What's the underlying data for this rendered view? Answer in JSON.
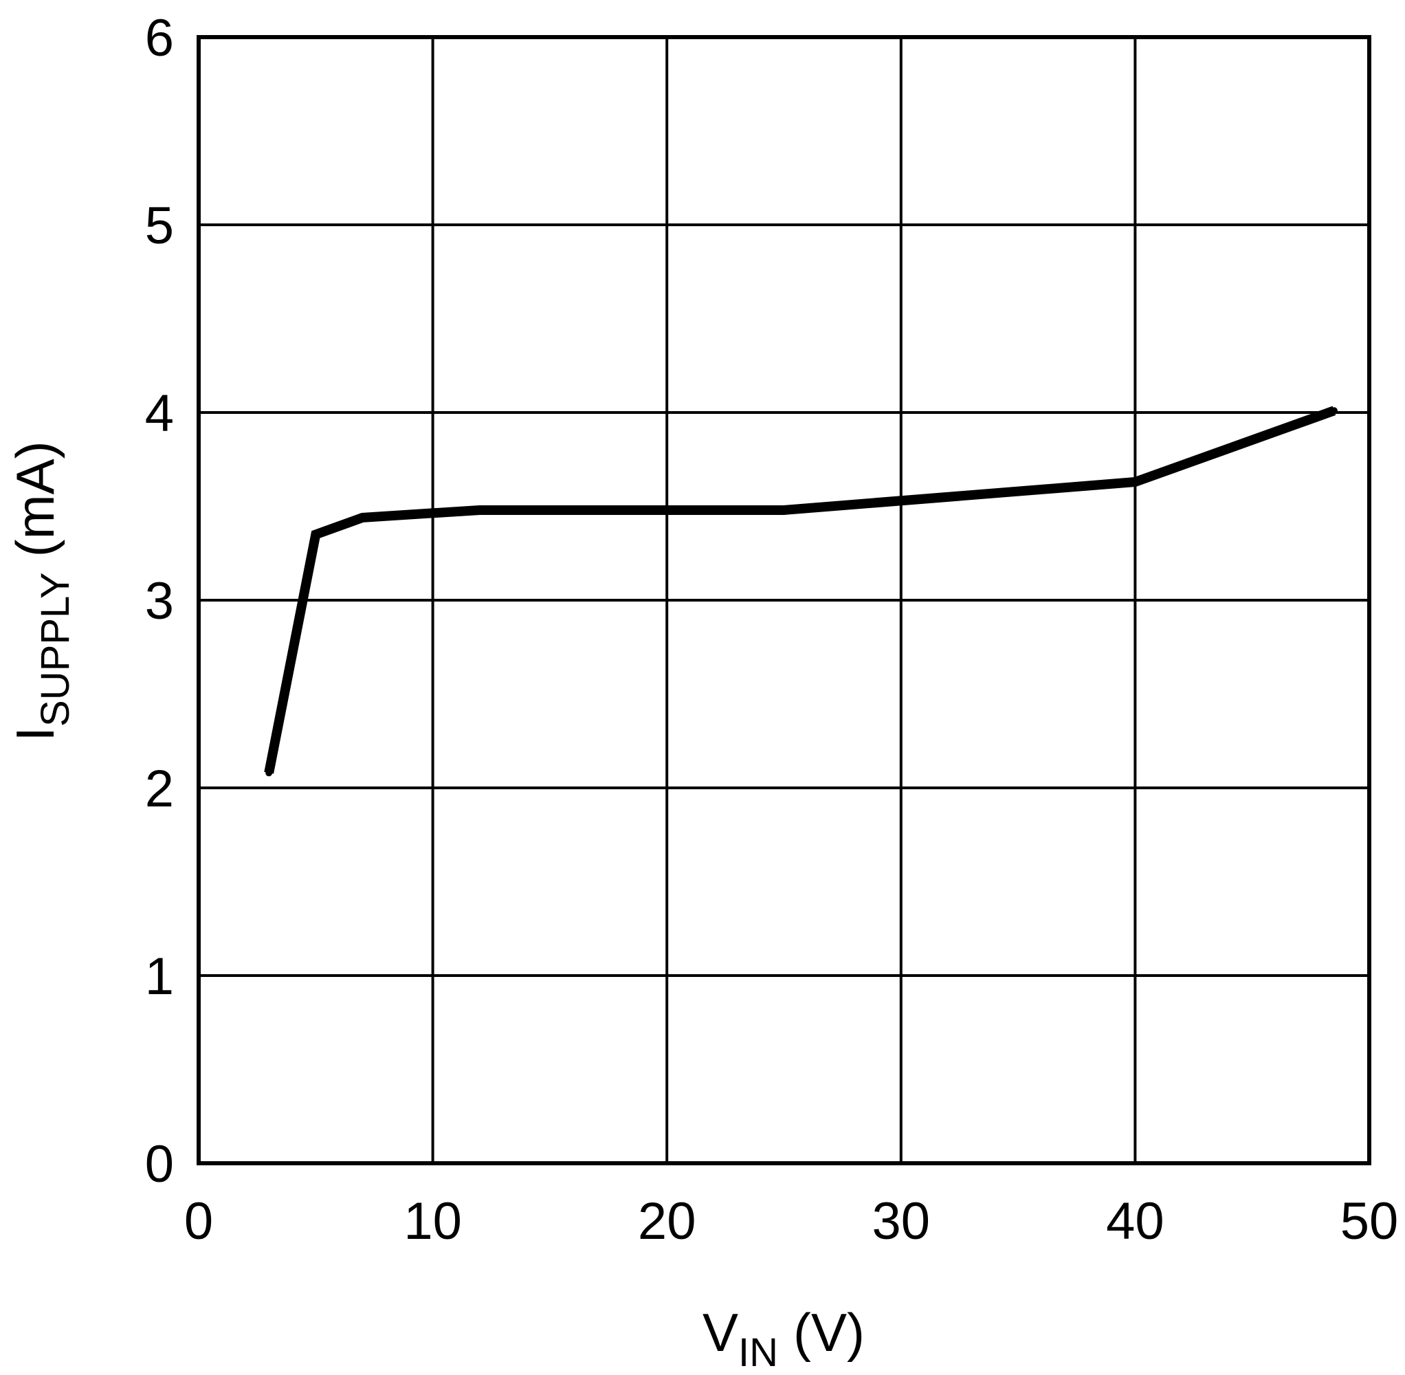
{
  "chart_data": {
    "type": "line",
    "title": "",
    "xlabel": {
      "main": "V",
      "sub": "IN",
      "unit": "(V)"
    },
    "ylabel": {
      "main": "I",
      "sub": "SUPPLY",
      "unit": "(mA)"
    },
    "xlim": [
      0,
      50
    ],
    "ylim": [
      0,
      6
    ],
    "xticks": [
      0,
      10,
      20,
      30,
      40,
      50
    ],
    "yticks": [
      0,
      1,
      2,
      3,
      4,
      5,
      6
    ],
    "grid": true,
    "series": [
      {
        "color": "#000000",
        "x": [
          3,
          5,
          7,
          12,
          25,
          40,
          48.5
        ],
        "y": [
          2.08,
          3.35,
          3.44,
          3.48,
          3.48,
          3.63,
          4.01
        ]
      }
    ]
  }
}
